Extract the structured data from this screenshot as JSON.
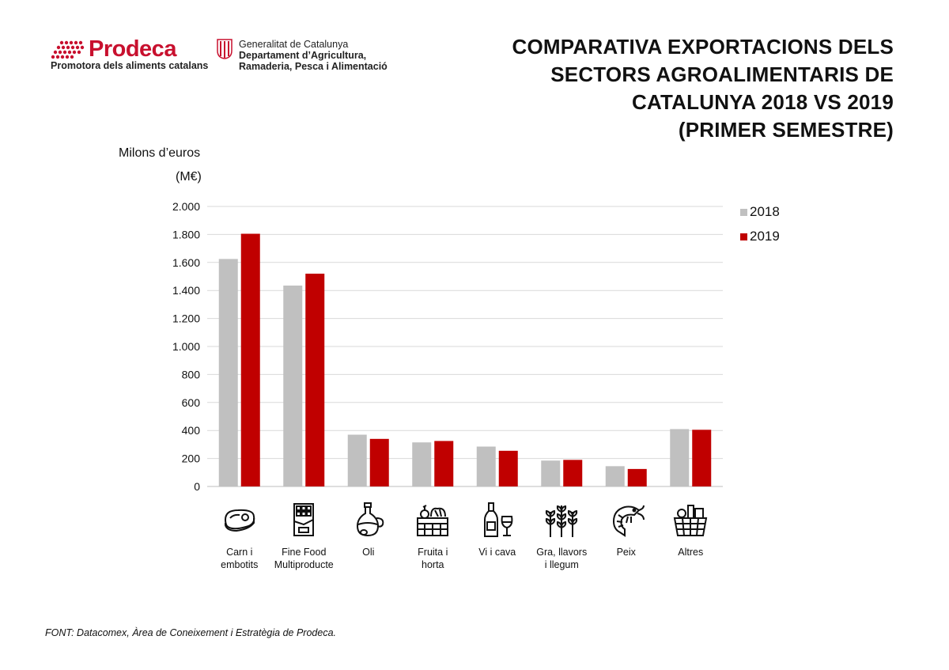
{
  "header": {
    "prodeca_name": "Prodeca",
    "prodeca_tagline": "Promotora dels aliments catalans",
    "gencat_line1": "Generalitat de Catalunya",
    "gencat_line2": "Departament d’Agricultura,",
    "gencat_line3": "Ramaderia, Pesca i Alimentació",
    "title_lines": [
      "COMPARATIVA EXPORTACIONS DELS",
      "SECTORS AGROALIMENTARIS DE",
      "CATALUNYA 2018 VS 2019",
      "(PRIMER SEMESTRE)"
    ]
  },
  "chart_data": {
    "type": "bar",
    "title": "COMPARATIVA EXPORTACIONS DELS SECTORS AGROALIMENTARIS DE CATALUNYA 2018 VS 2019 (PRIMER SEMESTRE)",
    "ylabel_line1": "Milons d’euros",
    "ylabel_line2": "(M€)",
    "xlabel": "",
    "ylim": [
      0,
      2000
    ],
    "yticks": [
      0,
      200,
      400,
      600,
      800,
      1000,
      1200,
      1400,
      1600,
      1800,
      2000
    ],
    "ytick_labels": [
      "0",
      "200",
      "400",
      "600",
      "800",
      "1.000",
      "1.200",
      "1.400",
      "1.600",
      "1.800",
      "2.000"
    ],
    "grid": true,
    "legend_position": "right",
    "categories": [
      "Carn i\nembotits",
      "Fine Food\nMultiproducte",
      "Oli",
      "Fruita i\nhorta",
      "Vi i cava",
      "Gra, llavors\ni llegum",
      "Peix",
      "Altres"
    ],
    "category_icons": [
      "meat-icon",
      "chocolate-icon",
      "oil-bottle-icon",
      "vegetable-crate-icon",
      "wine-icon",
      "grain-icon",
      "shrimp-icon",
      "basket-icon"
    ],
    "series": [
      {
        "name": "2018",
        "color": "#c0c0c0",
        "values": [
          1625,
          1435,
          370,
          315,
          285,
          185,
          145,
          410
        ]
      },
      {
        "name": "2019",
        "color": "#c00000",
        "values": [
          1805,
          1520,
          340,
          325,
          255,
          190,
          125,
          405
        ]
      }
    ]
  },
  "footnote": "FONT:  Datacomex, Àrea de Coneixement i Estratègia de Prodeca."
}
